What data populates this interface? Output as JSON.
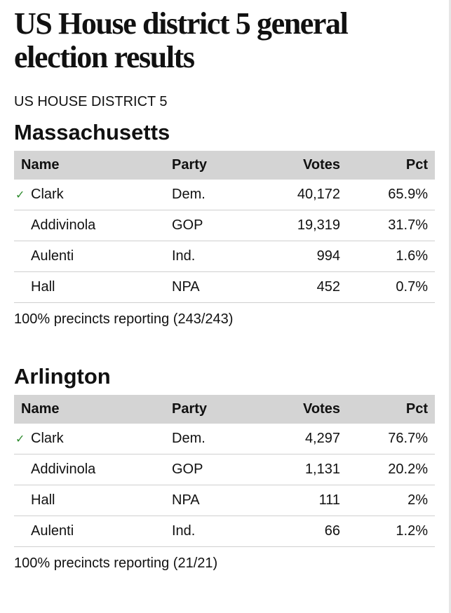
{
  "headline": "US House district 5 general election results",
  "subhead": "US HOUSE DISTRICT 5",
  "columns": {
    "name": "Name",
    "party": "Party",
    "votes": "Votes",
    "pct": "Pct"
  },
  "check_symbol": "✓",
  "sections": [
    {
      "title": "Massachusetts",
      "rows": [
        {
          "winner": true,
          "name": "Clark",
          "party": "Dem.",
          "votes": "40,172",
          "pct": "65.9%"
        },
        {
          "winner": false,
          "name": "Addivinola",
          "party": "GOP",
          "votes": "19,319",
          "pct": "31.7%"
        },
        {
          "winner": false,
          "name": "Aulenti",
          "party": "Ind.",
          "votes": "994",
          "pct": "1.6%"
        },
        {
          "winner": false,
          "name": "Hall",
          "party": "NPA",
          "votes": "452",
          "pct": "0.7%"
        }
      ],
      "footnote": "100% precincts reporting (243/243)"
    },
    {
      "title": "Arlington",
      "rows": [
        {
          "winner": true,
          "name": "Clark",
          "party": "Dem.",
          "votes": "4,297",
          "pct": "76.7%"
        },
        {
          "winner": false,
          "name": "Addivinola",
          "party": "GOP",
          "votes": "1,131",
          "pct": "20.2%"
        },
        {
          "winner": false,
          "name": "Hall",
          "party": "NPA",
          "votes": "111",
          "pct": "2%"
        },
        {
          "winner": false,
          "name": "Aulenti",
          "party": "Ind.",
          "votes": "66",
          "pct": "1.2%"
        }
      ],
      "footnote": "100% precincts reporting (21/21)"
    }
  ]
}
